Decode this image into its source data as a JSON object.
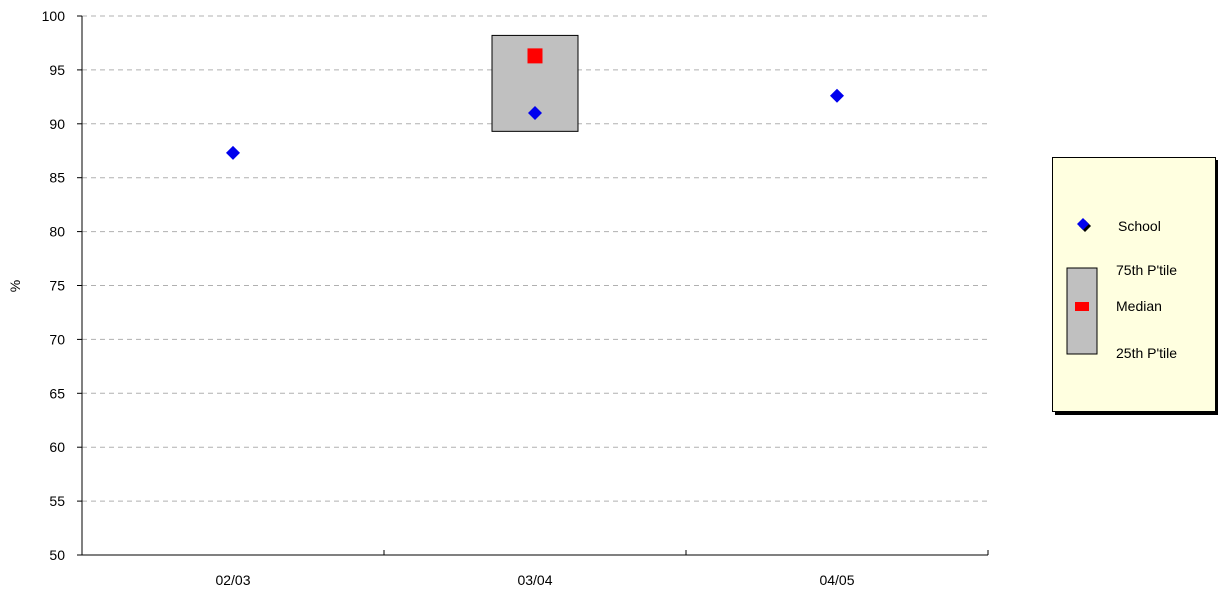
{
  "chart_data": {
    "type": "box-scatter",
    "ylabel": "%",
    "ylim": [
      50,
      100
    ],
    "yticks": [
      "50",
      "55",
      "60",
      "65",
      "70",
      "75",
      "80",
      "85",
      "90",
      "95",
      "100"
    ],
    "categories": [
      "02/03",
      "03/04",
      "04/05"
    ],
    "grid": true,
    "legend_position": "right",
    "school": {
      "name": "School",
      "values": [
        87.3,
        91.0,
        92.6
      ],
      "color": "#0000ee"
    },
    "percentile_box": {
      "category": "03/04",
      "p75": 98.2,
      "median": 96.3,
      "p25": 89.3,
      "box_color": "#c0c0c0",
      "median_color": "#ff0000"
    }
  },
  "legend": {
    "school": "School",
    "p75": "75th P'tile",
    "median": "Median",
    "p25": "25th P'tile",
    "background": "#ffffe0"
  }
}
